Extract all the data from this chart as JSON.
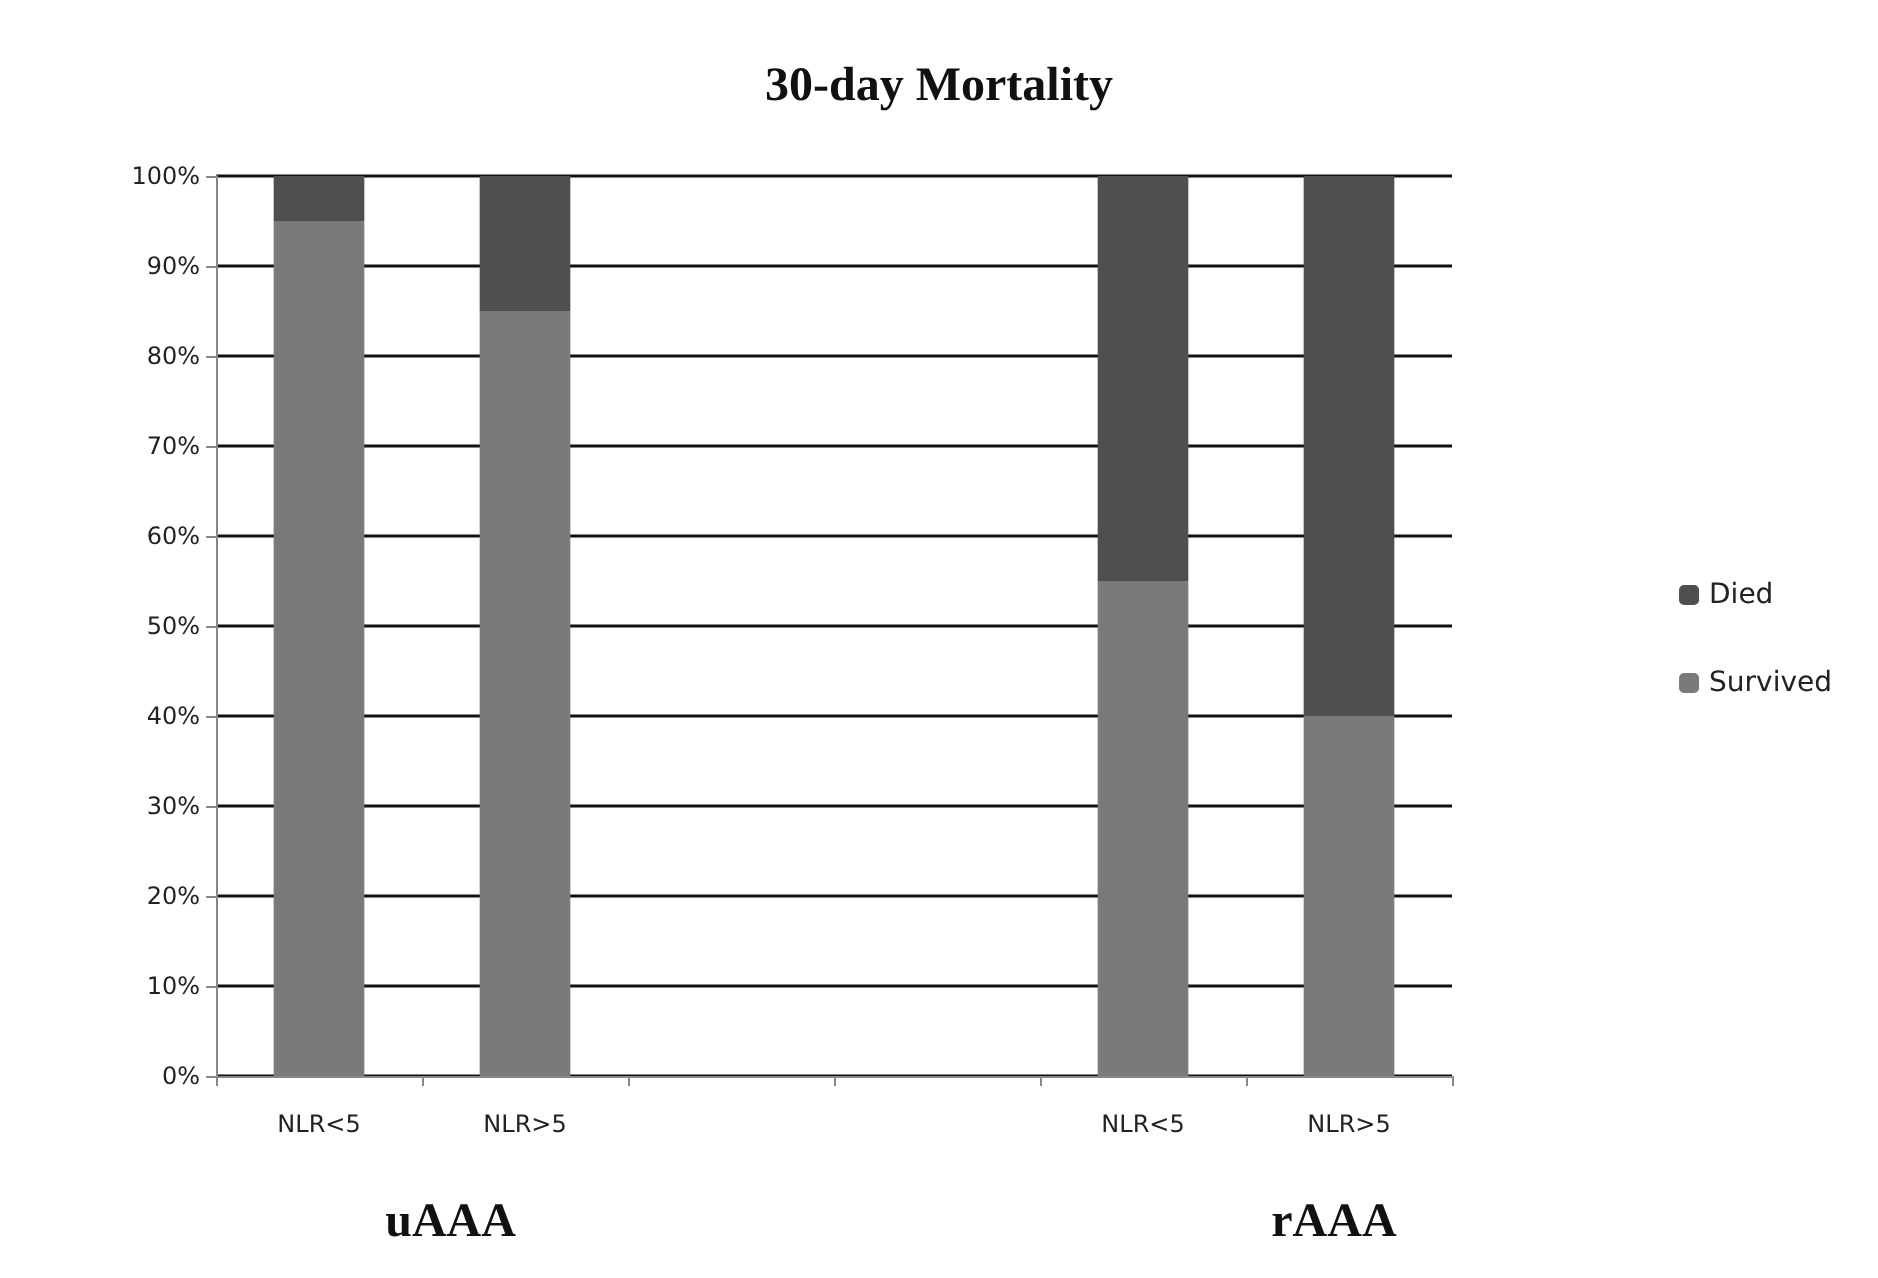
{
  "chart_data": {
    "type": "bar",
    "title": "30-day Mortality",
    "stacked": true,
    "categories": [
      "NLR<5",
      "NLR>5",
      null,
      null,
      "NLR<5",
      "NLR>5"
    ],
    "series": [
      {
        "name": "Survived",
        "color": "#7a7a7a",
        "values": [
          95,
          85,
          null,
          null,
          55,
          40
        ]
      },
      {
        "name": "Died",
        "color": "#4f4f4f",
        "values": [
          5,
          15,
          null,
          null,
          45,
          60
        ]
      }
    ],
    "ylim": [
      0,
      100
    ],
    "yticks": [
      {
        "value": 0,
        "label": "0%"
      },
      {
        "value": 10,
        "label": "10%"
      },
      {
        "value": 20,
        "label": "20%"
      },
      {
        "value": 30,
        "label": "30%"
      },
      {
        "value": 40,
        "label": "40%"
      },
      {
        "value": 50,
        "label": "50%"
      },
      {
        "value": 60,
        "label": "60%"
      },
      {
        "value": 70,
        "label": "70%"
      },
      {
        "value": 80,
        "label": "80%"
      },
      {
        "value": 90,
        "label": "90%"
      },
      {
        "value": 100,
        "label": "100%"
      }
    ],
    "grid": "y",
    "legend": "right",
    "annotations": [
      "uAAA",
      "rAAA"
    ]
  }
}
